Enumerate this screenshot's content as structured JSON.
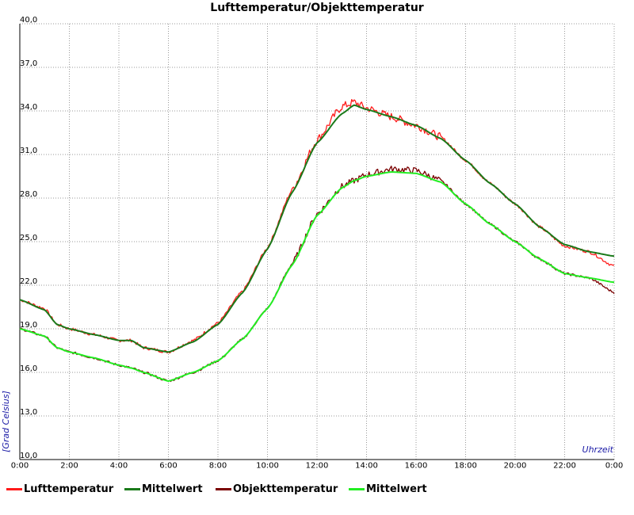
{
  "chart_data": {
    "type": "line",
    "title": "Lufttemperatur/Objekttemperatur",
    "xlabel": "Uhrzeit",
    "ylabel": "[Grad Celsius]",
    "xlim": [
      0,
      24
    ],
    "ylim": [
      10,
      40
    ],
    "x_ticks": [
      "0:00",
      "2:00",
      "4:00",
      "6:00",
      "8:00",
      "10:00",
      "12:00",
      "14:00",
      "16:00",
      "18:00",
      "20:00",
      "22:00",
      "0:00"
    ],
    "y_ticks": [
      "10,0",
      "13,0",
      "16,0",
      "19,0",
      "22,0",
      "25,0",
      "28,0",
      "31,0",
      "34,0",
      "37,0",
      "40,0"
    ],
    "grid": true,
    "x": [
      0,
      1,
      1.5,
      2,
      3,
      4,
      4.5,
      5,
      6,
      7,
      8,
      9,
      10,
      11,
      12,
      13,
      13.5,
      14,
      15,
      16,
      17,
      18,
      19,
      20,
      21,
      22,
      23,
      24
    ],
    "series": [
      {
        "name": "Lufttemperatur",
        "color": "#ff1a1a",
        "noise": 0.35,
        "values": [
          21.0,
          20.4,
          19.3,
          19.0,
          18.6,
          18.2,
          18.2,
          17.7,
          17.4,
          18.2,
          19.4,
          21.6,
          24.6,
          28.6,
          32.0,
          34.3,
          34.6,
          34.2,
          33.6,
          33.0,
          32.2,
          30.6,
          29.0,
          27.6,
          26.0,
          24.7,
          24.3,
          23.3
        ]
      },
      {
        "name": "Mittelwert",
        "color": "#1a7a1a",
        "noise": 0,
        "values": [
          21.0,
          20.3,
          19.3,
          19.0,
          18.6,
          18.2,
          18.2,
          17.7,
          17.4,
          18.1,
          19.3,
          21.5,
          24.5,
          28.4,
          31.8,
          33.8,
          34.4,
          34.1,
          33.6,
          33.0,
          32.1,
          30.6,
          29.0,
          27.6,
          26.0,
          24.8,
          24.3,
          24.0
        ]
      },
      {
        "name": "Objekttemperatur",
        "color": "#7a0000",
        "noise": 0.28,
        "values": [
          19.0,
          18.5,
          17.7,
          17.4,
          17.0,
          16.5,
          16.3,
          16.0,
          15.4,
          16.0,
          16.8,
          18.3,
          20.4,
          23.5,
          26.9,
          28.8,
          29.2,
          29.6,
          30.0,
          29.9,
          29.2,
          27.6,
          26.2,
          25.0,
          23.8,
          22.8,
          22.5,
          21.5
        ]
      },
      {
        "name": "Mittelwert",
        "color": "#22ee22",
        "noise": 0,
        "values": [
          19.0,
          18.5,
          17.7,
          17.4,
          17.0,
          16.5,
          16.3,
          16.0,
          15.4,
          16.0,
          16.8,
          18.3,
          20.4,
          23.4,
          26.8,
          28.7,
          29.2,
          29.5,
          29.8,
          29.7,
          29.1,
          27.6,
          26.2,
          25.0,
          23.8,
          22.8,
          22.5,
          22.2
        ]
      }
    ]
  }
}
